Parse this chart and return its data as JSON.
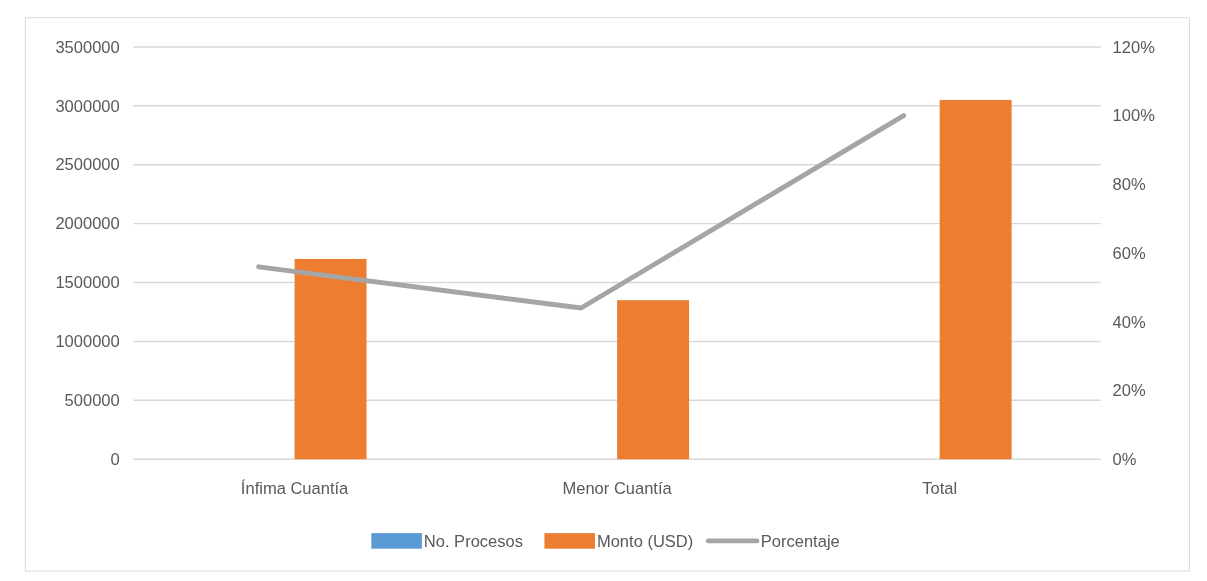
{
  "chart_data": {
    "type": "bar",
    "categories": [
      "Ínfima Cuantía",
      "Menor Cuantía",
      "Total"
    ],
    "series": [
      {
        "name": "No. Procesos",
        "color": "#5b9bd5",
        "values": [
          0,
          0,
          0
        ]
      },
      {
        "name": "Monto (USD)",
        "color": "#ed7d31",
        "values": [
          1700000,
          1350000,
          3050000
        ]
      },
      {
        "name": "Porcentaje",
        "type": "line",
        "axis": "y2",
        "color": "#a5a5a5",
        "values": [
          56,
          44,
          100
        ]
      }
    ],
    "ylim": [
      0,
      3500000
    ],
    "yticks": [
      0,
      500000,
      1000000,
      1500000,
      2000000,
      2500000,
      3000000,
      3500000
    ],
    "y2lim": [
      0,
      120
    ],
    "y2ticks": [
      {
        "value": 0,
        "label": "0%"
      },
      {
        "value": 20,
        "label": "20%"
      },
      {
        "value": 40,
        "label": "40%"
      },
      {
        "value": 60,
        "label": "60%"
      },
      {
        "value": 80,
        "label": "80%"
      },
      {
        "value": 100,
        "label": "100%"
      },
      {
        "value": 120,
        "label": "120%"
      }
    ],
    "grid": "y",
    "legend": "bottom",
    "line_style": "solid",
    "marker": "none"
  }
}
